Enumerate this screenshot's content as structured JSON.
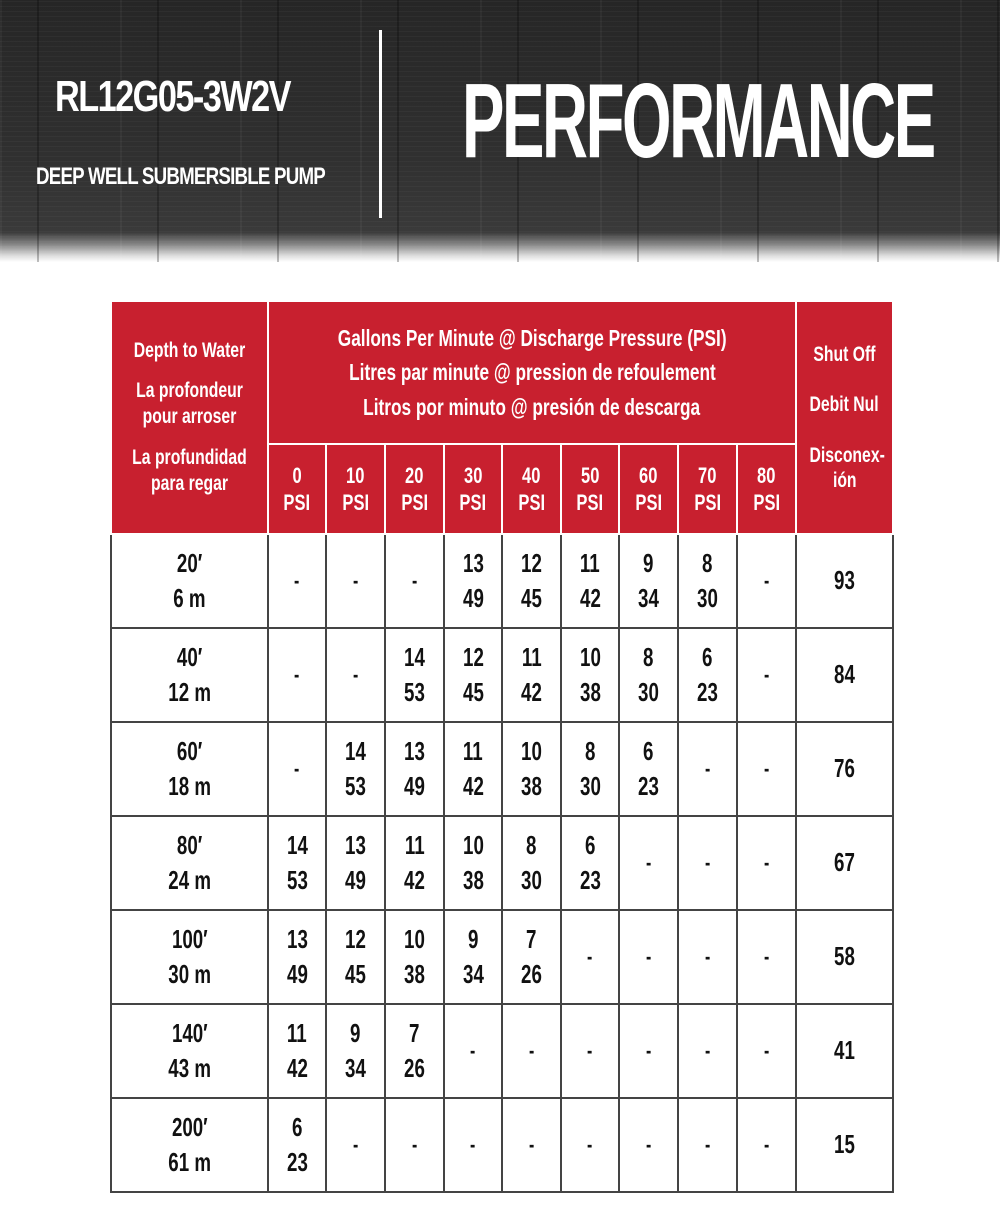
{
  "banner": {
    "model": "RL12G05-3W2V",
    "subtitle": "DEEP WELL SUBMERSIBLE PUMP",
    "title": "PERFORMANCE"
  },
  "colors": {
    "header_red": "#c8202f",
    "banner_dark": "#2c2c2c"
  },
  "table": {
    "depth_header": [
      "Depth to Water",
      "La profondeur",
      "pour arroser",
      "La profundidad",
      "para regar"
    ],
    "flow_header": [
      "Gallons Per Minute @ Discharge Pressure (PSI)",
      "Litres par minute @ pression de refoulement",
      "Litros por minuto @ presión de descarga"
    ],
    "shutoff_header": [
      "Shut Off",
      "Debit Nul",
      "Disconex-",
      "ión"
    ],
    "psi_columns": [
      {
        "value": "0",
        "unit": "PSI"
      },
      {
        "value": "10",
        "unit": "PSI"
      },
      {
        "value": "20",
        "unit": "PSI"
      },
      {
        "value": "30",
        "unit": "PSI"
      },
      {
        "value": "40",
        "unit": "PSI"
      },
      {
        "value": "50",
        "unit": "PSI"
      },
      {
        "value": "60",
        "unit": "PSI"
      },
      {
        "value": "70",
        "unit": "PSI"
      },
      {
        "value": "80",
        "unit": "PSI"
      }
    ],
    "rows": [
      {
        "depth_ft": "20′",
        "depth_m": "6 m",
        "cells": [
          "-",
          "-",
          "-",
          [
            "13",
            "49"
          ],
          [
            "12",
            "45"
          ],
          [
            "11",
            "42"
          ],
          [
            "9",
            "34"
          ],
          [
            "8",
            "30"
          ],
          "-"
        ],
        "shutoff": "93"
      },
      {
        "depth_ft": "40′",
        "depth_m": "12 m",
        "cells": [
          "-",
          "-",
          [
            "14",
            "53"
          ],
          [
            "12",
            "45"
          ],
          [
            "11",
            "42"
          ],
          [
            "10",
            "38"
          ],
          [
            "8",
            "30"
          ],
          [
            "6",
            "23"
          ],
          "-"
        ],
        "shutoff": "84"
      },
      {
        "depth_ft": "60′",
        "depth_m": "18 m",
        "cells": [
          "-",
          [
            "14",
            "53"
          ],
          [
            "13",
            "49"
          ],
          [
            "11",
            "42"
          ],
          [
            "10",
            "38"
          ],
          [
            "8",
            "30"
          ],
          [
            "6",
            "23"
          ],
          "-",
          "-"
        ],
        "shutoff": "76"
      },
      {
        "depth_ft": "80′",
        "depth_m": "24 m",
        "cells": [
          [
            "14",
            "53"
          ],
          [
            "13",
            "49"
          ],
          [
            "11",
            "42"
          ],
          [
            "10",
            "38"
          ],
          [
            "8",
            "30"
          ],
          [
            "6",
            "23"
          ],
          "-",
          "-",
          "-"
        ],
        "shutoff": "67"
      },
      {
        "depth_ft": "100′",
        "depth_m": "30 m",
        "cells": [
          [
            "13",
            "49"
          ],
          [
            "12",
            "45"
          ],
          [
            "10",
            "38"
          ],
          [
            "9",
            "34"
          ],
          [
            "7",
            "26"
          ],
          "-",
          "-",
          "-",
          "-"
        ],
        "shutoff": "58"
      },
      {
        "depth_ft": "140′",
        "depth_m": "43 m",
        "cells": [
          [
            "11",
            "42"
          ],
          [
            "9",
            "34"
          ],
          [
            "7",
            "26"
          ],
          "-",
          "-",
          "-",
          "-",
          "-",
          "-"
        ],
        "shutoff": "41"
      },
      {
        "depth_ft": "200′",
        "depth_m": "61 m",
        "cells": [
          [
            "6",
            "23"
          ],
          "-",
          "-",
          "-",
          "-",
          "-",
          "-",
          "-",
          "-"
        ],
        "shutoff": "15"
      }
    ]
  }
}
